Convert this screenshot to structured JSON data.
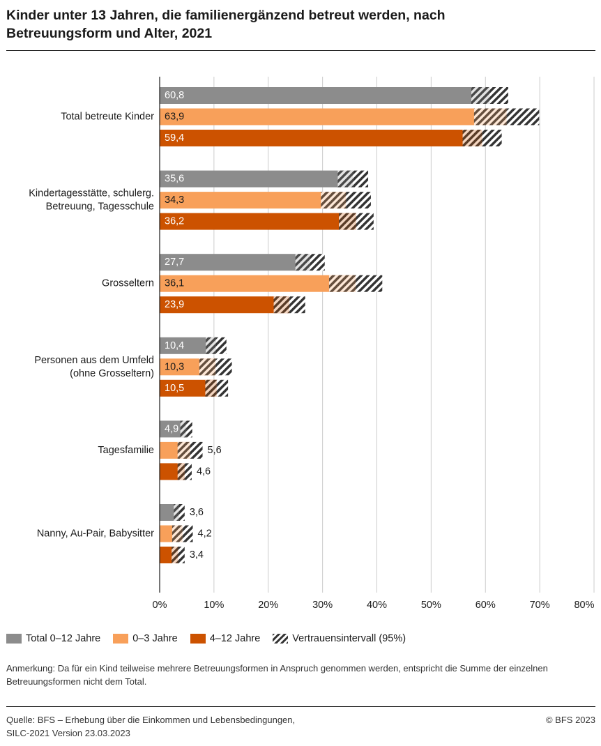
{
  "title_lines": [
    "Kinder unter 13 Jahren, die familienergänzend betreut werden, nach",
    "Betreuungsform und Alter, 2021"
  ],
  "colors": {
    "total": "#8c8c8c",
    "age_0_3": "#f8a05a",
    "age_4_12": "#cc5200",
    "hatch": "#333333",
    "grid": "#cccccc",
    "axis": "#1a1a1a"
  },
  "chart_data": {
    "type": "bar",
    "orientation": "horizontal",
    "categories": [
      [
        "Total betreute Kinder"
      ],
      [
        "Kindertagesstätte, schulerg.",
        "Betreuung, Tagesschule"
      ],
      [
        "Grosseltern"
      ],
      [
        "Personen aus dem Umfeld",
        "(ohne Grosseltern)"
      ],
      [
        "Tagesfamilie"
      ],
      [
        "Nanny, Au-Pair, Babysitter"
      ]
    ],
    "series": [
      {
        "name": "Total 0–12 Jahre",
        "color": "#8c8c8c",
        "values": [
          60.8,
          35.6,
          27.7,
          10.4,
          4.9,
          3.6
        ],
        "labels": [
          "60,8",
          "35,6",
          "27,7",
          "10,4",
          "4,9",
          "3,6"
        ],
        "ci": [
          [
            57.4,
            64.2
          ],
          [
            32.8,
            38.4
          ],
          [
            25.0,
            30.4
          ],
          [
            8.5,
            12.3
          ],
          [
            3.8,
            6.0
          ],
          [
            2.6,
            4.6
          ]
        ]
      },
      {
        "name": "0–3 Jahre",
        "color": "#f8a05a",
        "values": [
          63.9,
          34.3,
          36.1,
          10.3,
          5.6,
          4.2
        ],
        "labels": [
          "63,9",
          "34,3",
          "36,1",
          "10,3",
          "5,6",
          "4,2"
        ],
        "ci": [
          [
            57.9,
            69.9
          ],
          [
            29.7,
            38.9
          ],
          [
            31.2,
            41.0
          ],
          [
            7.3,
            13.3
          ],
          [
            3.3,
            7.9
          ],
          [
            2.3,
            6.1
          ]
        ]
      },
      {
        "name": "4–12 Jahre",
        "color": "#cc5200",
        "values": [
          59.4,
          36.2,
          23.9,
          10.5,
          4.6,
          3.4
        ],
        "labels": [
          "59,4",
          "36,2",
          "23,9",
          "10,5",
          "4,6",
          "3,4"
        ],
        "ci": [
          [
            55.8,
            63.0
          ],
          [
            33.0,
            39.4
          ],
          [
            21.0,
            26.8
          ],
          [
            8.4,
            12.6
          ],
          [
            3.3,
            5.9
          ],
          [
            2.2,
            4.6
          ]
        ]
      }
    ],
    "ci_legend": "Vertrauensintervall (95%)",
    "xlim": [
      0,
      80
    ],
    "xticks": [
      0,
      10,
      20,
      30,
      40,
      50,
      60,
      70,
      80
    ],
    "xtick_labels": [
      "0%",
      "10%",
      "20%",
      "30%",
      "40%",
      "50%",
      "60%",
      "70%",
      "80%"
    ],
    "grid": true,
    "legend_position": "bottom-left"
  },
  "note": "Anmerkung: Da für ein Kind teilweise mehrere Betreuungsformen in Anspruch genommen werden, entspricht die Summe der einzelnen Betreuungsformen nicht dem Total.",
  "source_lines": [
    "Quelle: BFS – Erhebung über die Einkommen und Lebensbedingungen,",
    "SILC-2021 Version 23.03.2023"
  ],
  "copyright": "© BFS 2023"
}
